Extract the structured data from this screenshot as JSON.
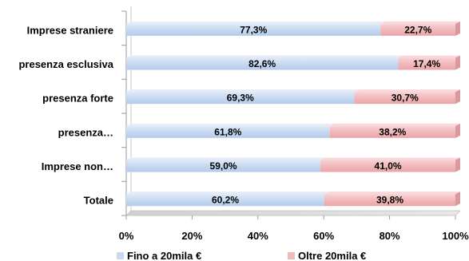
{
  "chart_data": {
    "type": "bar",
    "orientation": "horizontal",
    "stacked": true,
    "percent_stacked": true,
    "categories": [
      "Imprese straniere",
      "presenza esclusiva",
      "presenza forte",
      "presenza…",
      "Imprese non…",
      "Totale"
    ],
    "series": [
      {
        "name": "Fino a 20mila €",
        "color": "#c6d9f1",
        "values": [
          77.3,
          82.6,
          69.3,
          61.8,
          59.0,
          60.2
        ],
        "labels": [
          "77,3%",
          "82,6%",
          "69,3%",
          "61,8%",
          "59,0%",
          "60,2%"
        ]
      },
      {
        "name": "Oltre 20mila €",
        "color": "#f2b8bb",
        "values": [
          22.7,
          17.4,
          30.7,
          38.2,
          41.0,
          39.8
        ],
        "labels": [
          "22,7%",
          "17,4%",
          "30,7%",
          "38,2%",
          "41,0%",
          "39,8%"
        ]
      }
    ],
    "x_ticks": [
      "0%",
      "20%",
      "40%",
      "60%",
      "80%",
      "100%"
    ],
    "xlim": [
      0,
      100
    ],
    "xlabel": "",
    "ylabel": "",
    "title": "",
    "grid": false,
    "legend_position": "bottom"
  }
}
